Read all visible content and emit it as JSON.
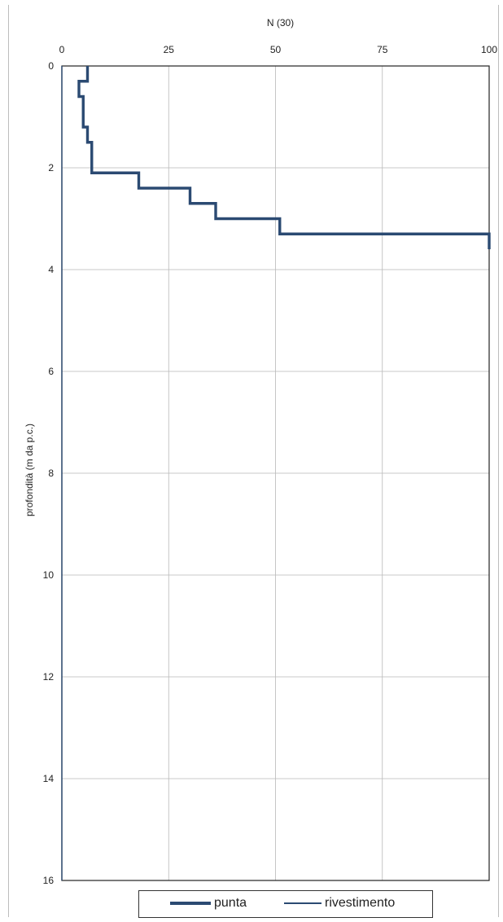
{
  "chart_data": {
    "type": "line",
    "title": "",
    "xlabel": "N (30)",
    "ylabel": "profondità (m da p.c.)",
    "xlim": [
      0,
      100
    ],
    "ylim": [
      0,
      16
    ],
    "y_inverted": true,
    "x_axis_position": "top",
    "x_ticks": [
      "0",
      "25",
      "50",
      "75",
      "100"
    ],
    "y_ticks": [
      "0",
      "2",
      "4",
      "6",
      "8",
      "10",
      "12",
      "14",
      "16"
    ],
    "grid": true,
    "legend_position": "bottom",
    "series": [
      {
        "name": "punta",
        "color": "#2b4a72",
        "style": "thick",
        "points": [
          [
            6,
            0
          ],
          [
            6,
            0.3
          ],
          [
            4,
            0.3
          ],
          [
            4,
            0.6
          ],
          [
            5,
            0.6
          ],
          [
            5,
            1.2
          ],
          [
            6,
            1.2
          ],
          [
            6,
            1.5
          ],
          [
            7,
            1.5
          ],
          [
            7,
            2.1
          ],
          [
            18,
            2.1
          ],
          [
            18,
            2.4
          ],
          [
            30,
            2.4
          ],
          [
            30,
            2.7
          ],
          [
            36,
            2.7
          ],
          [
            36,
            3.0
          ],
          [
            51,
            3.0
          ],
          [
            51,
            3.3
          ],
          [
            100,
            3.3
          ],
          [
            100,
            3.6
          ]
        ]
      },
      {
        "name": "rivestimento",
        "color": "#2b4a72",
        "style": "thin",
        "points": [
          [
            0,
            0
          ],
          [
            0,
            16
          ]
        ]
      }
    ]
  }
}
